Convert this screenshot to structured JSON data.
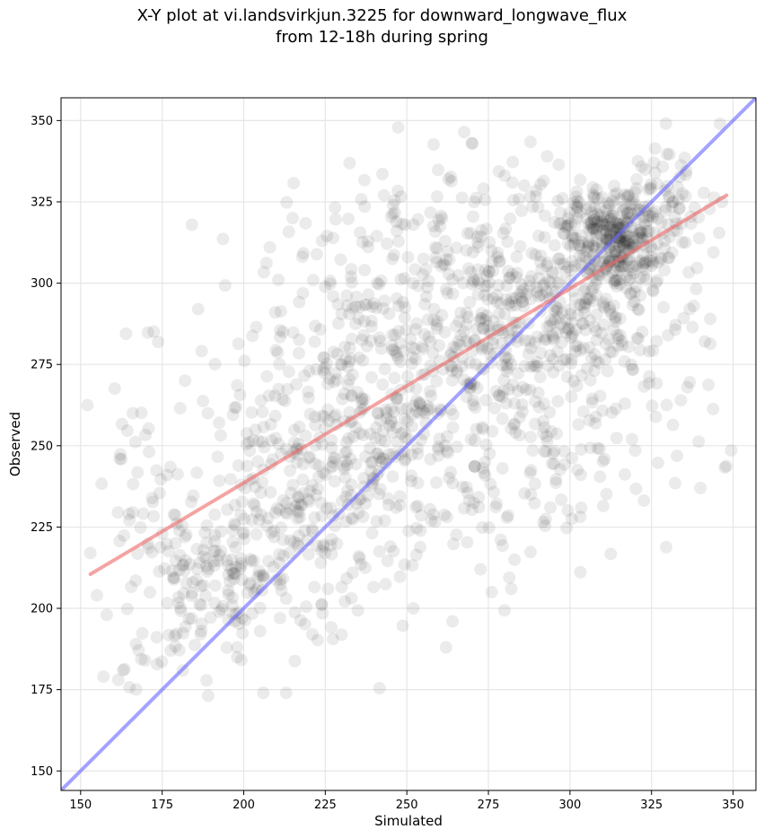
{
  "chart_data": {
    "type": "scatter",
    "title_lines": [
      "X-Y plot at vi.landsvirkjun.3225 for downward_longwave_flux",
      "from 12-18h during spring"
    ],
    "xlabel": "Simulated",
    "ylabel": "Observed",
    "xlim": [
      144,
      357
    ],
    "ylim": [
      144,
      357
    ],
    "xticks": [
      150,
      175,
      200,
      225,
      250,
      275,
      300,
      325,
      350
    ],
    "yticks": [
      150,
      175,
      200,
      225,
      250,
      275,
      300,
      325,
      350
    ],
    "grid": true,
    "point_color": "#000000",
    "point_opacity": 0.08,
    "clusters": [
      {
        "cx": 315,
        "cy": 315,
        "sx": 7,
        "sy": 7,
        "n": 220
      },
      {
        "cx": 305,
        "cy": 300,
        "sx": 14,
        "sy": 16,
        "n": 220
      },
      {
        "cx": 280,
        "cy": 285,
        "sx": 22,
        "sy": 22,
        "n": 320
      },
      {
        "cx": 240,
        "cy": 260,
        "sx": 22,
        "sy": 25,
        "n": 360
      },
      {
        "cx": 215,
        "cy": 228,
        "sx": 16,
        "sy": 18,
        "n": 200
      },
      {
        "cx": 190,
        "cy": 205,
        "sx": 10,
        "sy": 12,
        "n": 110
      },
      {
        "cx": 170,
        "cy": 225,
        "sx": 8,
        "sy": 25,
        "n": 60
      },
      {
        "cx": 300,
        "cy": 255,
        "sx": 22,
        "sy": 20,
        "n": 120
      },
      {
        "cx": 260,
        "cy": 300,
        "sx": 25,
        "sy": 15,
        "n": 120
      },
      {
        "cx": 330,
        "cy": 325,
        "sx": 8,
        "sy": 10,
        "n": 60
      }
    ],
    "scattered_points": [
      [
        270,
        343
      ],
      [
        293,
        339
      ],
      [
        346,
        349
      ],
      [
        343,
        289
      ],
      [
        336,
        268
      ],
      [
        262,
        188
      ],
      [
        206,
        174
      ],
      [
        213,
        174
      ],
      [
        157,
        179
      ],
      [
        155,
        204
      ],
      [
        153,
        217
      ],
      [
        158,
        198
      ],
      [
        166,
        260
      ],
      [
        162,
        246
      ],
      [
        175,
        223
      ],
      [
        182,
        270
      ],
      [
        186,
        292
      ],
      [
        189,
        260
      ],
      [
        198,
        185
      ],
      [
        208,
        311
      ],
      [
        215,
        320
      ],
      [
        224,
        313
      ],
      [
        243,
        327
      ],
      [
        252,
        318
      ],
      [
        270,
        343
      ],
      [
        280,
        333
      ],
      [
        286,
        330
      ],
      [
        319,
        252
      ],
      [
        334,
        264
      ],
      [
        340,
        237
      ],
      [
        282,
        206
      ],
      [
        276,
        205
      ],
      [
        294,
        231
      ],
      [
        252,
        200
      ],
      [
        264,
        196
      ],
      [
        213,
        203
      ],
      [
        205,
        193
      ],
      [
        198,
        188
      ],
      [
        167,
        189
      ],
      [
        163,
        181
      ]
    ],
    "series": [
      {
        "name": "",
        "type": "identity",
        "color": "#6666ff",
        "x": [
          144,
          357
        ],
        "y": [
          144,
          357
        ]
      },
      {
        "name": "",
        "type": "regression",
        "color": "#ee6666",
        "x": [
          153,
          348
        ],
        "y": [
          210.5,
          327
        ]
      }
    ]
  }
}
